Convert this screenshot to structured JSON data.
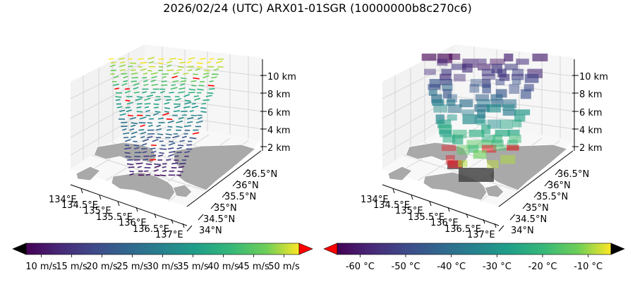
{
  "title": "2026/02/24 (UTC) ARX01-01SGR (10000000b8c270c6)",
  "chart_data": [
    {
      "type": "3d-quiver",
      "panel": "left",
      "variable": "wind speed",
      "x_ticks": [
        "134°E",
        "134.5°E",
        "135°E",
        "135.5°E",
        "136°E",
        "136.5°E",
        "137°E"
      ],
      "y_ticks": [
        "34°N",
        "34.5°N",
        "35°N",
        "35.5°N",
        "36°N",
        "36.5°N"
      ],
      "z_ticks": [
        "2 km",
        "4 km",
        "6 km",
        "8 km",
        "10 km"
      ],
      "colorbar": {
        "cmap": "viridis",
        "min": 7.5,
        "max": 52.5,
        "extend": "both",
        "under_color": "#000000",
        "over_color": "#ff0000",
        "tick_values": [
          10,
          15,
          20,
          25,
          30,
          35,
          40,
          45,
          50
        ],
        "ticks": [
          "10 m/s",
          "15 m/s",
          "20 m/s",
          "25 m/s",
          "30 m/s",
          "35 m/s",
          "40 m/s",
          "45 m/s",
          "50 m/s"
        ]
      }
    },
    {
      "type": "3d-voxel",
      "panel": "right",
      "variable": "temperature",
      "x_ticks": [
        "134°E",
        "134.5°E",
        "135°E",
        "135.5°E",
        "136°E",
        "136.5°E",
        "137°E"
      ],
      "y_ticks": [
        "34°N",
        "34.5°N",
        "35°N",
        "35.5°N",
        "36°N",
        "36.5°N"
      ],
      "z_ticks": [
        "2 km",
        "4 km",
        "6 km",
        "8 km",
        "10 km"
      ],
      "colorbar": {
        "cmap": "viridis",
        "min": -65,
        "max": -5,
        "extend": "both",
        "under_color": "#ff0000",
        "over_color": "#000000",
        "tick_values": [
          -60,
          -50,
          -40,
          -30,
          -20,
          -10
        ],
        "ticks": [
          "-60 °C",
          "-50 °C",
          "-40 °C",
          "-30 °C",
          "-20 °C",
          "-10 °C"
        ]
      }
    }
  ]
}
